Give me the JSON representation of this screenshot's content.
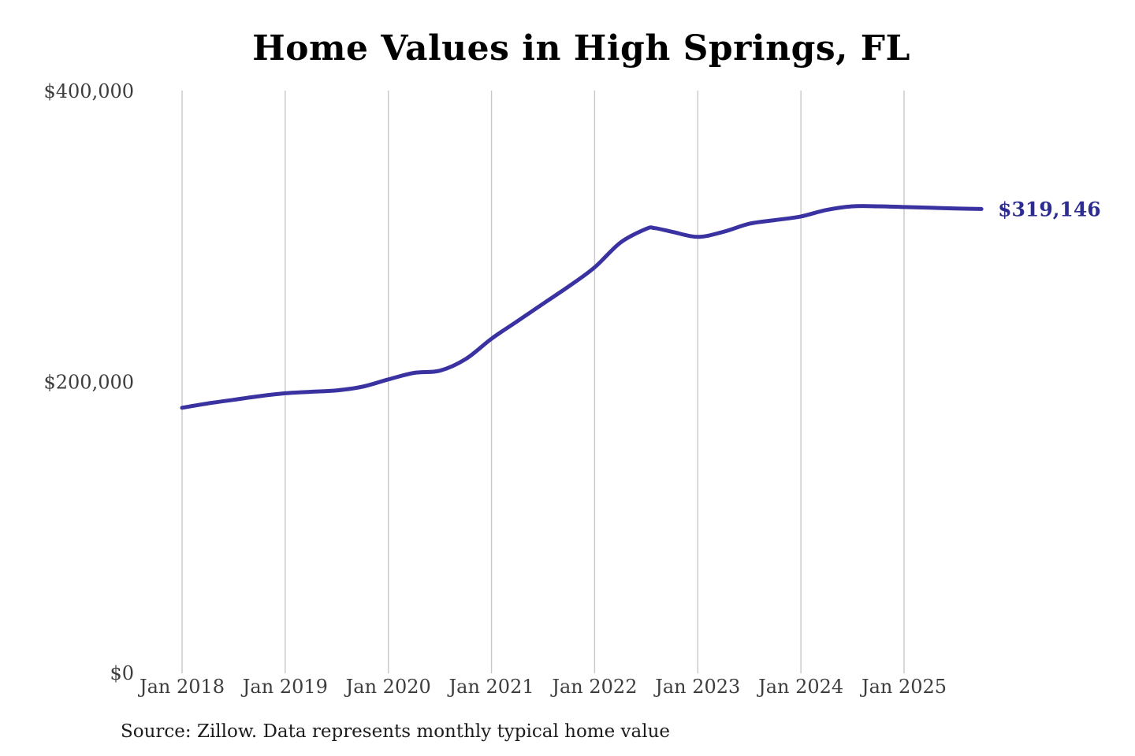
{
  "page": {
    "background": "#ffffff"
  },
  "chart_data": {
    "type": "line",
    "title": "Home Values in High Springs, FL",
    "source_note": "Source: Zillow. Data represents monthly typical home value",
    "series_name": "Monthly typical home value",
    "end_label": "$319,146",
    "end_value": 319146,
    "x_ticks": [
      "Jan 2018",
      "Jan 2019",
      "Jan 2020",
      "Jan 2021",
      "Jan 2022",
      "Jan 2023",
      "Jan 2024",
      "Jan 2025"
    ],
    "y_ticks": [
      {
        "label": "$0",
        "value": 0
      },
      {
        "label": "$200,000",
        "value": 200000
      },
      {
        "label": "$400,000",
        "value": 400000
      }
    ],
    "ylim": [
      0,
      400000
    ],
    "grid": "vertical-only",
    "legend": "none",
    "colors": {
      "line": "#3a32a0",
      "end_label": "#2d2c90",
      "grid": "#c8c8c8",
      "tick_text": "#3d3d3d",
      "title_text": "#000000",
      "source_text": "#1c1c1c"
    },
    "points": [
      {
        "date": "2018-01",
        "value": 182500
      },
      {
        "date": "2018-04",
        "value": 185500
      },
      {
        "date": "2018-07",
        "value": 188000
      },
      {
        "date": "2018-10",
        "value": 190500
      },
      {
        "date": "2019-01",
        "value": 192500
      },
      {
        "date": "2019-04",
        "value": 193500
      },
      {
        "date": "2019-07",
        "value": 194500
      },
      {
        "date": "2019-10",
        "value": 197000
      },
      {
        "date": "2020-01",
        "value": 202000
      },
      {
        "date": "2020-04",
        "value": 206500
      },
      {
        "date": "2020-07",
        "value": 208000
      },
      {
        "date": "2020-10",
        "value": 216000
      },
      {
        "date": "2021-01",
        "value": 230000
      },
      {
        "date": "2021-04",
        "value": 242000
      },
      {
        "date": "2021-07",
        "value": 254000
      },
      {
        "date": "2021-10",
        "value": 266000
      },
      {
        "date": "2022-01",
        "value": 279000
      },
      {
        "date": "2022-04",
        "value": 296000
      },
      {
        "date": "2022-07",
        "value": 305500
      },
      {
        "date": "2022-08",
        "value": 306000
      },
      {
        "date": "2022-10",
        "value": 303500
      },
      {
        "date": "2023-01",
        "value": 300000
      },
      {
        "date": "2023-04",
        "value": 303500
      },
      {
        "date": "2023-07",
        "value": 309000
      },
      {
        "date": "2023-10",
        "value": 311500
      },
      {
        "date": "2024-01",
        "value": 314000
      },
      {
        "date": "2024-04",
        "value": 318500
      },
      {
        "date": "2024-07",
        "value": 321000
      },
      {
        "date": "2024-10",
        "value": 321000
      },
      {
        "date": "2025-01",
        "value": 320500
      },
      {
        "date": "2025-04",
        "value": 320000
      },
      {
        "date": "2025-07",
        "value": 319500
      },
      {
        "date": "2025-10",
        "value": 319146
      }
    ]
  }
}
